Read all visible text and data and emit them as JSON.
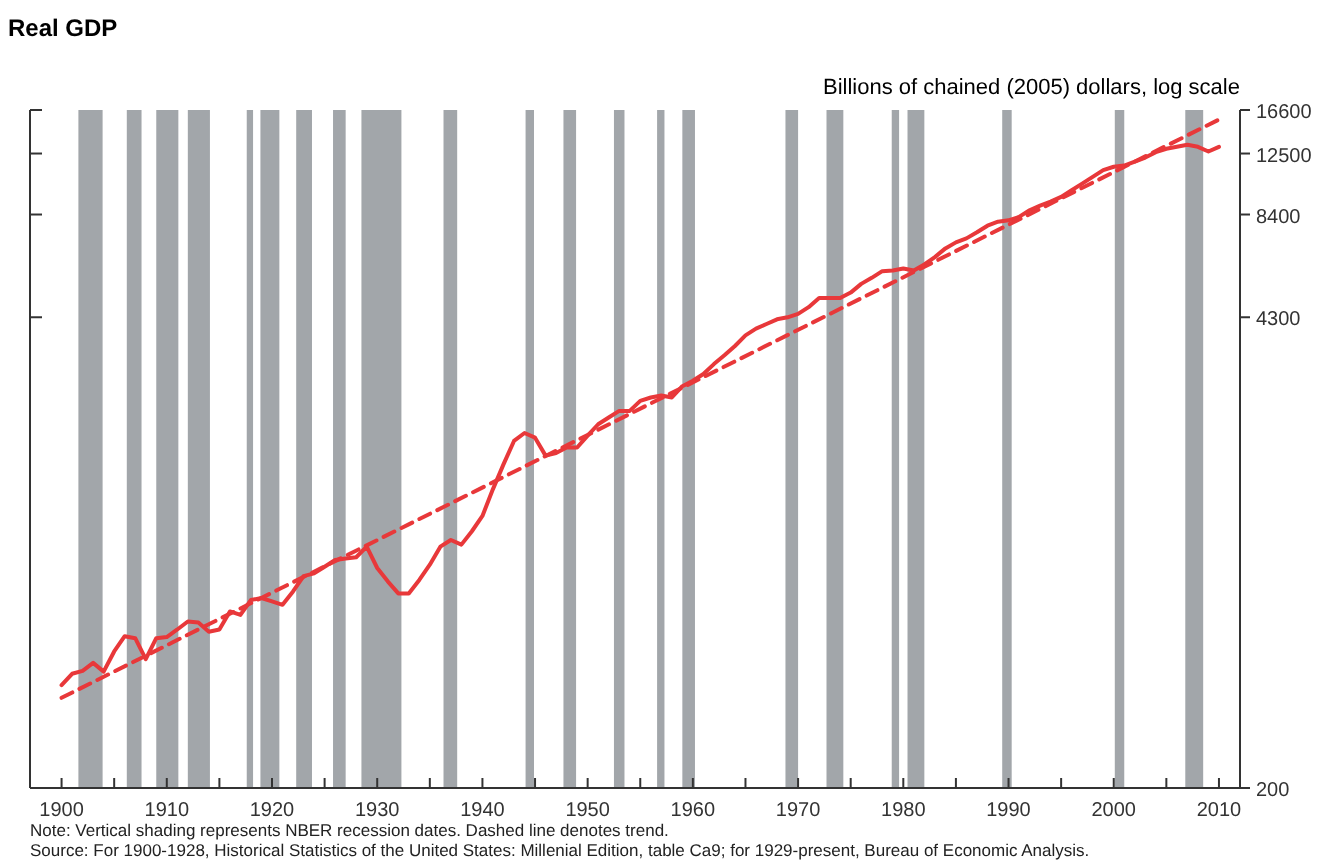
{
  "chart_data": {
    "type": "line",
    "title": "Real GDP",
    "ylabel": "Billions of chained (2005) dollars, log scale",
    "log": true,
    "grid": false,
    "xlim": [
      1897,
      2012
    ],
    "xticks": [
      1900,
      {
        "value": 1905,
        "label": null
      },
      1910,
      {
        "value": 1915,
        "label": null
      },
      1920,
      {
        "value": 1925,
        "label": null
      },
      1930,
      {
        "value": 1935,
        "label": null
      },
      1940,
      {
        "value": 1945,
        "label": null
      },
      1950,
      {
        "value": 1955,
        "label": null
      },
      1960,
      {
        "value": 1965,
        "label": null
      },
      1970,
      {
        "value": 1975,
        "label": null
      },
      1980,
      {
        "value": 1985,
        "label": null
      },
      1990,
      {
        "value": 1995,
        "label": null
      },
      2000,
      {
        "value": 2005,
        "label": null
      },
      2010
    ],
    "ylim": [
      200,
      16600
    ],
    "yticks": [
      200,
      4300,
      8400,
      12500,
      16600
    ],
    "series": [
      {
        "color": "#e8383a",
        "line_style": "solid",
        "x": [
          1900,
          1901,
          1902,
          1903,
          1904,
          1905,
          1906,
          1907,
          1908,
          1909,
          1910,
          1911,
          1912,
          1913,
          1914,
          1915,
          1916,
          1917,
          1918,
          1919,
          1920,
          1921,
          1922,
          1923,
          1924,
          1925,
          1926,
          1927,
          1928,
          1929,
          1930,
          1931,
          1932,
          1933,
          1934,
          1935,
          1936,
          1937,
          1938,
          1939,
          1940,
          1941,
          1942,
          1943,
          1944,
          1945,
          1946,
          1947,
          1948,
          1949,
          1950,
          1951,
          1952,
          1953,
          1954,
          1955,
          1956,
          1957,
          1958,
          1959,
          1960,
          1961,
          1962,
          1963,
          1964,
          1965,
          1966,
          1967,
          1968,
          1969,
          1970,
          1971,
          1972,
          1973,
          1974,
          1975,
          1976,
          1977,
          1978,
          1979,
          1980,
          1981,
          1982,
          1983,
          1984,
          1985,
          1986,
          1987,
          1988,
          1989,
          1990,
          1991,
          1992,
          1993,
          1994,
          1995,
          1996,
          1997,
          1998,
          1999,
          2000,
          2001,
          2002,
          2003,
          2004,
          2005,
          2006,
          2007,
          2008,
          2009,
          2010
        ],
        "values": [
          391,
          421,
          429,
          452,
          427,
          487,
          538,
          531,
          463,
          531,
          535,
          562,
          592,
          588,
          554,
          562,
          632,
          618,
          681,
          690,
          675,
          660,
          720,
          796,
          810,
          846,
          884,
          892,
          900,
          964,
          839,
          769,
          711,
          711,
          776,
          857,
          964,
          1007,
          977,
          1066,
          1178,
          1403,
          1648,
          1920,
          2022,
          1962,
          1745,
          1775,
          1840,
          1840,
          1988,
          2141,
          2238,
          2336,
          2336,
          2494,
          2549,
          2581,
          2549,
          2744,
          2842,
          2970,
          3169,
          3355,
          3566,
          3821,
          3992,
          4115,
          4243,
          4299,
          4394,
          4592,
          4877,
          4877,
          4877,
          5050,
          5345,
          5559,
          5808,
          5830,
          5910,
          5830,
          6066,
          6364,
          6735,
          7005,
          7190,
          7480,
          7810,
          8016,
          8090,
          8269,
          8634,
          8903,
          9138,
          9426,
          9840,
          10277,
          10739,
          11217,
          11466,
          11559,
          11862,
          12174,
          12609,
          12891,
          13057,
          13229,
          13057,
          12667,
          13057
        ]
      },
      {
        "color": "#e8383a",
        "line_style": "dashed",
        "x": [
          1900,
          2010
        ],
        "values": [
          360,
          15600
        ]
      }
    ],
    "bands": [
      {
        "axis": "x",
        "from": 1901.6,
        "to": 1903.9,
        "color": "#a2a6aa"
      },
      {
        "axis": "x",
        "from": 1906.2,
        "to": 1907.6,
        "color": "#a2a6aa"
      },
      {
        "axis": "x",
        "from": 1909.0,
        "to": 1911.1,
        "color": "#a2a6aa"
      },
      {
        "axis": "x",
        "from": 1912.0,
        "to": 1914.1,
        "color": "#a2a6aa"
      },
      {
        "axis": "x",
        "from": 1917.6,
        "to": 1918.2,
        "color": "#a2a6aa"
      },
      {
        "axis": "x",
        "from": 1918.9,
        "to": 1920.7,
        "color": "#a2a6aa"
      },
      {
        "axis": "x",
        "from": 1922.3,
        "to": 1923.8,
        "color": "#a2a6aa"
      },
      {
        "axis": "x",
        "from": 1925.8,
        "to": 1927.0,
        "color": "#a2a6aa"
      },
      {
        "axis": "x",
        "from": 1928.5,
        "to": 1932.3,
        "color": "#a2a6aa"
      },
      {
        "axis": "x",
        "from": 1936.3,
        "to": 1937.6,
        "color": "#a2a6aa"
      },
      {
        "axis": "x",
        "from": 1944.1,
        "to": 1944.9,
        "color": "#a2a6aa"
      },
      {
        "axis": "x",
        "from": 1947.7,
        "to": 1948.9,
        "color": "#a2a6aa"
      },
      {
        "axis": "x",
        "from": 1952.5,
        "to": 1953.5,
        "color": "#a2a6aa"
      },
      {
        "axis": "x",
        "from": 1956.6,
        "to": 1957.3,
        "color": "#a2a6aa"
      },
      {
        "axis": "x",
        "from": 1959.0,
        "to": 1960.2,
        "color": "#a2a6aa"
      },
      {
        "axis": "x",
        "from": 1968.8,
        "to": 1970.0,
        "color": "#a2a6aa"
      },
      {
        "axis": "x",
        "from": 1972.7,
        "to": 1974.3,
        "color": "#a2a6aa"
      },
      {
        "axis": "x",
        "from": 1978.9,
        "to": 1979.6,
        "color": "#a2a6aa"
      },
      {
        "axis": "x",
        "from": 1980.4,
        "to": 1982.0,
        "color": "#a2a6aa"
      },
      {
        "axis": "x",
        "from": 1989.4,
        "to": 1990.3,
        "color": "#a2a6aa"
      },
      {
        "axis": "x",
        "from": 2000.1,
        "to": 2001.0,
        "color": "#a2a6aa"
      },
      {
        "axis": "x",
        "from": 2006.8,
        "to": 2008.5,
        "color": "#a2a6aa"
      }
    ],
    "annotations": [
      "Note: Vertical shading represents NBER recession dates.  Dashed line denotes trend.",
      "Source: For 1900-1928, Historical Statistics of the United States: Millenial Edition, table Ca9; for 1929-present, Bureau of Economic Analysis."
    ]
  }
}
